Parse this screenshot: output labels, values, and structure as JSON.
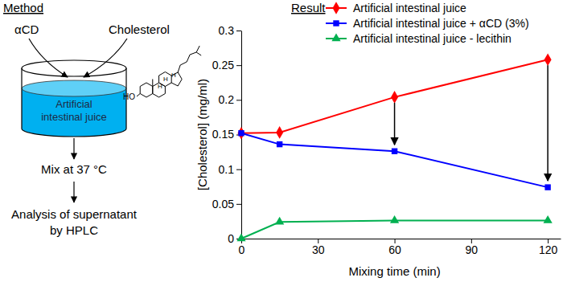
{
  "method": {
    "title": "Method",
    "inputs": [
      "αCD",
      "Cholesterol"
    ],
    "vessel_label": [
      "Artificial",
      "intestinal juice"
    ],
    "molecule_labels": [
      "HO",
      "H",
      "H",
      "H"
    ],
    "steps": [
      "Mix at 37 °C",
      "Analysis of supernatant",
      "by HPLC"
    ]
  },
  "chart_data": {
    "type": "line",
    "title": "Result",
    "x_label": "Mixing time (min)",
    "y_label": "[Cholesterol] (mg/ml)",
    "x": [
      0,
      15,
      60,
      120
    ],
    "series": [
      {
        "name": "Artificial intestinal juice",
        "color": "#ff0000",
        "marker": "diamond",
        "values": [
          0.152,
          0.153,
          0.204,
          0.258
        ]
      },
      {
        "name": "Artificial intestinal juice + αCD (3%)",
        "color": "#0000ff",
        "marker": "square",
        "values": [
          0.152,
          0.136,
          0.126,
          0.074
        ]
      },
      {
        "name": "Artificial intestinal juice - lecithin",
        "color": "#00b050",
        "marker": "triangle",
        "values": [
          0,
          0.024,
          0.026,
          0.026
        ]
      }
    ],
    "arrows_x": [
      60,
      120
    ],
    "xlim": [
      0,
      125
    ],
    "xticks": [
      0,
      30,
      60,
      90,
      120
    ],
    "ylim": [
      0,
      0.3
    ],
    "yticks": [
      0,
      0.05,
      0.1,
      0.15,
      0.2,
      0.25,
      0.3
    ],
    "grid": false,
    "legend": "upper left"
  }
}
